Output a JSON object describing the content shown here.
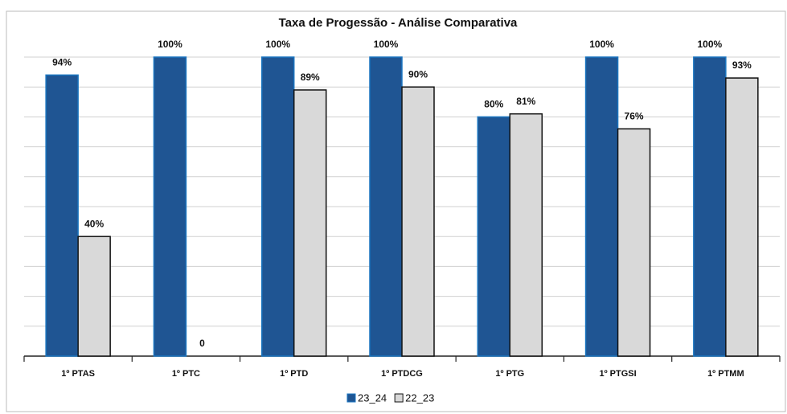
{
  "chart_data": {
    "type": "bar",
    "title": "Taxa de Progessão - Análise Comparativa",
    "categories": [
      "1º PTAS",
      "1º PTC",
      "1º PTD",
      "1º PTDCG",
      "1º PTG",
      "1º PTGSI",
      "1º PTMM"
    ],
    "series": [
      {
        "name": "23_24",
        "color": "#1f5593",
        "values": [
          94,
          100,
          100,
          100,
          80,
          100,
          100
        ],
        "value_labels": [
          "94%",
          "100%",
          "100%",
          "100%",
          "80%",
          "100%",
          "100%"
        ]
      },
      {
        "name": "22_23",
        "color": "#d9d9d9",
        "values": [
          40,
          0,
          89,
          90,
          81,
          76,
          93
        ],
        "value_labels": [
          "40%",
          "0",
          "89%",
          "90%",
          "81%",
          "76%",
          "93%"
        ]
      }
    ],
    "ylim": [
      0,
      100
    ],
    "yticks": [
      0,
      10,
      20,
      30,
      40,
      50,
      60,
      70,
      80,
      90,
      100
    ],
    "grid": true,
    "legend": "bottom"
  }
}
